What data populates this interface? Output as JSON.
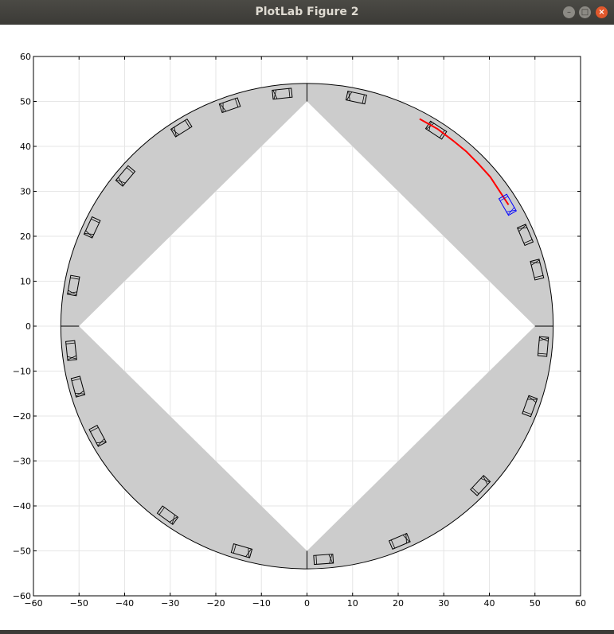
{
  "window": {
    "title": "PlotLab Figure 2",
    "minimize_icon": "minimize-icon",
    "maximize_icon": "maximize-icon",
    "close_icon": "close-icon"
  },
  "chart_data": {
    "type": "scatter",
    "title": "",
    "xlabel": "",
    "ylabel": "",
    "xlim": [
      -60,
      60
    ],
    "ylim": [
      -60,
      60
    ],
    "grid": true,
    "x_ticks": [
      -60,
      -50,
      -40,
      -30,
      -20,
      -10,
      0,
      10,
      20,
      30,
      40,
      50,
      60
    ],
    "y_ticks": [
      -60,
      -50,
      -40,
      -30,
      -20,
      -10,
      0,
      10,
      20,
      30,
      40,
      50,
      60
    ],
    "road": {
      "outer_radius": 54,
      "inner_diamond_vertex": 50,
      "fill": "#cccccc"
    },
    "vehicles_deg": [
      96,
      78,
      57,
      23,
      14,
      -5,
      -20,
      -43,
      -67,
      -86,
      -106,
      -126,
      -152,
      -165,
      -174,
      170,
      155,
      140,
      122,
      109
    ],
    "ego_vehicle": {
      "x": 44,
      "y": 27,
      "heading_deg": -60,
      "color": "#0000ff"
    },
    "trajectory": {
      "color": "#ff0000",
      "points": [
        [
          24.7,
          46.1
        ],
        [
          28.6,
          43.9
        ],
        [
          32.0,
          41.3
        ],
        [
          35.0,
          38.8
        ],
        [
          37.7,
          36.0
        ],
        [
          40.2,
          33.2
        ],
        [
          42.2,
          30.1
        ],
        [
          44.2,
          27.0
        ]
      ]
    }
  }
}
